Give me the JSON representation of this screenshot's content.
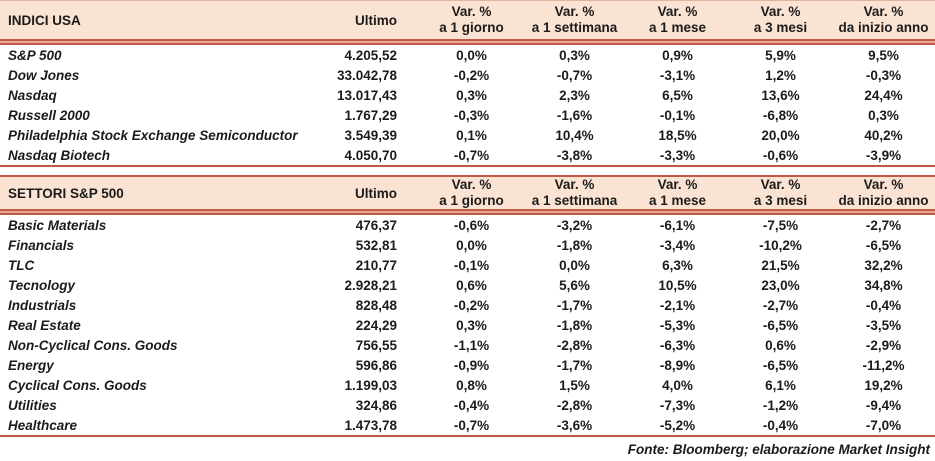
{
  "colors": {
    "header_bg": "#FAE3D2",
    "rule_dark": "#BE5A45",
    "rule_light": "#E9A893",
    "text": "#1b1b1b",
    "page_bg": "#ffffff"
  },
  "columns": {
    "ultimo": "Ultimo",
    "var_label": "Var. %",
    "periods": [
      "a 1 giorno",
      "a 1 settimana",
      "a 1 mese",
      "a 3 mesi",
      "da inizio anno"
    ]
  },
  "tables": [
    {
      "title": "INDICI USA",
      "rows": [
        {
          "name": "S&P 500",
          "ultimo": "4.205,52",
          "vars": [
            "0,0%",
            "0,3%",
            "0,9%",
            "5,9%",
            "9,5%"
          ]
        },
        {
          "name": "Dow Jones",
          "ultimo": "33.042,78",
          "vars": [
            "-0,2%",
            "-0,7%",
            "-3,1%",
            "1,2%",
            "-0,3%"
          ]
        },
        {
          "name": "Nasdaq",
          "ultimo": "13.017,43",
          "vars": [
            "0,3%",
            "2,3%",
            "6,5%",
            "13,6%",
            "24,4%"
          ]
        },
        {
          "name": "Russell 2000",
          "ultimo": "1.767,29",
          "vars": [
            "-0,3%",
            "-1,6%",
            "-0,1%",
            "-6,8%",
            "0,3%"
          ]
        },
        {
          "name": "Philadelphia Stock Exchange Semiconductor",
          "ultimo": "3.549,39",
          "vars": [
            "0,1%",
            "10,4%",
            "18,5%",
            "20,0%",
            "40,2%"
          ]
        },
        {
          "name": "Nasdaq Biotech",
          "ultimo": "4.050,70",
          "vars": [
            "-0,7%",
            "-3,8%",
            "-3,3%",
            "-0,6%",
            "-3,9%"
          ]
        }
      ]
    },
    {
      "title": "SETTORI S&P 500",
      "rows": [
        {
          "name": "Basic Materials",
          "ultimo": "476,37",
          "vars": [
            "-0,6%",
            "-3,2%",
            "-6,1%",
            "-7,5%",
            "-2,7%"
          ]
        },
        {
          "name": "Financials",
          "ultimo": "532,81",
          "vars": [
            "0,0%",
            "-1,8%",
            "-3,4%",
            "-10,2%",
            "-6,5%"
          ]
        },
        {
          "name": "TLC",
          "ultimo": "210,77",
          "vars": [
            "-0,1%",
            "0,0%",
            "6,3%",
            "21,5%",
            "32,2%"
          ]
        },
        {
          "name": "Tecnology",
          "ultimo": "2.928,21",
          "vars": [
            "0,6%",
            "5,6%",
            "10,5%",
            "23,0%",
            "34,8%"
          ]
        },
        {
          "name": "Industrials",
          "ultimo": "828,48",
          "vars": [
            "-0,2%",
            "-1,7%",
            "-2,1%",
            "-2,7%",
            "-0,4%"
          ]
        },
        {
          "name": "Real Estate",
          "ultimo": "224,29",
          "vars": [
            "0,3%",
            "-1,8%",
            "-5,3%",
            "-6,5%",
            "-3,5%"
          ]
        },
        {
          "name": "Non-Cyclical Cons. Goods",
          "ultimo": "756,55",
          "vars": [
            "-1,1%",
            "-2,8%",
            "-6,3%",
            "0,6%",
            "-2,9%"
          ]
        },
        {
          "name": "Energy",
          "ultimo": "596,86",
          "vars": [
            "-0,9%",
            "-1,7%",
            "-8,9%",
            "-6,5%",
            "-11,2%"
          ]
        },
        {
          "name": "Cyclical Cons. Goods",
          "ultimo": "1.199,03",
          "vars": [
            "0,8%",
            "1,5%",
            "4,0%",
            "6,1%",
            "19,2%"
          ]
        },
        {
          "name": "Utilities",
          "ultimo": "324,86",
          "vars": [
            "-0,4%",
            "-2,8%",
            "-7,3%",
            "-1,2%",
            "-9,4%"
          ]
        },
        {
          "name": "Healthcare",
          "ultimo": "1.473,78",
          "vars": [
            "-0,7%",
            "-3,6%",
            "-5,2%",
            "-0,4%",
            "-7,0%"
          ]
        }
      ]
    }
  ],
  "footer": "Fonte: Bloomberg; elaborazione Market Insight"
}
